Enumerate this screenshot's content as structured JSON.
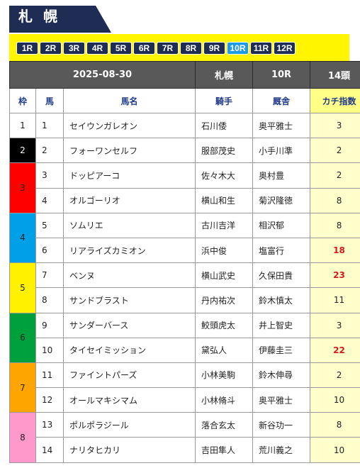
{
  "venue": {
    "title": "札幌"
  },
  "races": {
    "items": [
      "1R",
      "2R",
      "3R",
      "4R",
      "5R",
      "6R",
      "7R",
      "8R",
      "9R",
      "10R",
      "11R",
      "12R"
    ],
    "active": "10R"
  },
  "race_info": {
    "date": "2025-08-30",
    "venue": "札幌",
    "race": "10R",
    "heads": "14頭"
  },
  "table": {
    "headers": {
      "waku": "枠",
      "uma": "馬",
      "name": "馬名",
      "jockey": "騎手",
      "trainer": "厩舎",
      "kachi": "カチ指数"
    },
    "colors": {
      "w1": "#ffffff",
      "w2": "#000000",
      "w3": "#ff0000",
      "w4": "#00a0e9",
      "w5": "#fff100",
      "w6": "#00a03c",
      "w7": "#ffa500",
      "w8": "#ff99cc",
      "hot_index": "#d71920"
    },
    "wakus": [
      {
        "no": "1",
        "color": "#ffffff",
        "text_color": "#222222",
        "rows": [
          0
        ]
      },
      {
        "no": "2",
        "color": "#000000",
        "text_color": "#ffffff",
        "rows": [
          1
        ]
      },
      {
        "no": "3",
        "color": "#ff0000",
        "text_color": "#222222",
        "rows": [
          2,
          3
        ]
      },
      {
        "no": "4",
        "color": "#00a0e9",
        "text_color": "#222222",
        "rows": [
          4,
          5
        ]
      },
      {
        "no": "5",
        "color": "#fff100",
        "text_color": "#222222",
        "rows": [
          6,
          7
        ]
      },
      {
        "no": "6",
        "color": "#00a03c",
        "text_color": "#222222",
        "rows": [
          8,
          9
        ]
      },
      {
        "no": "7",
        "color": "#ffa500",
        "text_color": "#222222",
        "rows": [
          10,
          11
        ]
      },
      {
        "no": "8",
        "color": "#ff99cc",
        "text_color": "#222222",
        "rows": [
          12,
          13
        ]
      }
    ],
    "entries": [
      {
        "uma": "1",
        "name": "セイウンガレオン",
        "jockey": "石川倭",
        "trainer": "奥平雅士",
        "kachi": "3",
        "hot": false
      },
      {
        "uma": "2",
        "name": "フォーワンセルフ",
        "jockey": "服部茂史",
        "trainer": "小手川準",
        "kachi": "2",
        "hot": false
      },
      {
        "uma": "3",
        "name": "ドッピアーコ",
        "jockey": "佐々木大",
        "trainer": "奥村豊",
        "kachi": "2",
        "hot": false
      },
      {
        "uma": "4",
        "name": "オルゴーリオ",
        "jockey": "横山和生",
        "trainer": "菊沢隆徳",
        "kachi": "8",
        "hot": false
      },
      {
        "uma": "5",
        "name": "ソムリエ",
        "jockey": "古川吉洋",
        "trainer": "相沢郁",
        "kachi": "8",
        "hot": false
      },
      {
        "uma": "6",
        "name": "リアライズカミオン",
        "jockey": "浜中俊",
        "trainer": "塩富行",
        "kachi": "18",
        "hot": true
      },
      {
        "uma": "7",
        "name": "ベンヌ",
        "jockey": "横山武史",
        "trainer": "久保田貴",
        "kachi": "23",
        "hot": true
      },
      {
        "uma": "8",
        "name": "サンドブラスト",
        "jockey": "丹内祐次",
        "trainer": "鈴木慎太",
        "kachi": "11",
        "hot": false
      },
      {
        "uma": "9",
        "name": "サンダーバース",
        "jockey": "鮫頭虎太",
        "trainer": "井上智史",
        "kachi": "3",
        "hot": false
      },
      {
        "uma": "10",
        "name": "タイセイミッション",
        "jockey": "黛弘人",
        "trainer": "伊藤圭三",
        "kachi": "22",
        "hot": true
      },
      {
        "uma": "11",
        "name": "ファイントパーズ",
        "jockey": "小林美駒",
        "trainer": "鈴木伸尋",
        "kachi": "2",
        "hot": false
      },
      {
        "uma": "12",
        "name": "オールマキシマム",
        "jockey": "小林脩斗",
        "trainer": "奥平雅士",
        "kachi": "10",
        "hot": false
      },
      {
        "uma": "13",
        "name": "ポルポラジール",
        "jockey": "落合玄太",
        "trainer": "新谷功一",
        "kachi": "8",
        "hot": false
      },
      {
        "uma": "14",
        "name": "ナリタヒカリ",
        "jockey": "吉田隼人",
        "trainer": "荒川義之",
        "kachi": "10",
        "hot": false
      }
    ]
  }
}
